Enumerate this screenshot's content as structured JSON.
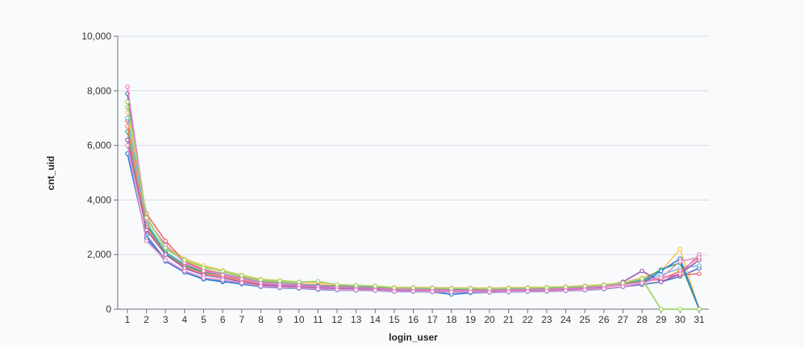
{
  "chart_data": {
    "type": "line",
    "title": "",
    "xlabel": "login_user",
    "ylabel": "cnt_uid",
    "x": [
      "1",
      "2",
      "3",
      "4",
      "5",
      "6",
      "7",
      "8",
      "9",
      "10",
      "11",
      "12",
      "13",
      "14",
      "15",
      "16",
      "17",
      "18",
      "19",
      "20",
      "21",
      "22",
      "23",
      "24",
      "25",
      "26",
      "27",
      "28",
      "29",
      "30",
      "31"
    ],
    "yTicks": [
      "0",
      "2,000",
      "4,000",
      "6,000",
      "8,000",
      "10,000"
    ],
    "ylim": [
      0,
      10000
    ],
    "grid": true,
    "legend_placement": "top (clipped)",
    "series": [
      {
        "color": "#5470c6",
        "values": [
          7900,
          2700,
          1800,
          1350,
          1100,
          1000,
          950,
          850,
          800,
          780,
          720,
          700,
          700,
          690,
          650,
          650,
          640,
          620,
          620,
          620,
          640,
          650,
          660,
          680,
          700,
          740,
          820,
          900,
          1000,
          1200,
          1500
        ]
      },
      {
        "color": "#91cc75",
        "values": [
          7400,
          3400,
          2200,
          1800,
          1550,
          1380,
          1200,
          1050,
          1000,
          980,
          1000,
          880,
          850,
          820,
          760,
          760,
          750,
          740,
          750,
          740,
          760,
          760,
          780,
          800,
          820,
          860,
          950,
          1100,
          0,
          0,
          0
        ]
      },
      {
        "color": "#fac858",
        "values": [
          7200,
          3300,
          2300,
          1850,
          1600,
          1420,
          1250,
          1100,
          1050,
          1000,
          950,
          900,
          880,
          850,
          800,
          800,
          790,
          780,
          780,
          770,
          790,
          800,
          810,
          830,
          860,
          900,
          980,
          1150,
          1400,
          2200,
          0
        ]
      },
      {
        "color": "#ee6666",
        "values": [
          6900,
          3500,
          2500,
          1750,
          1450,
          1300,
          1150,
          1000,
          950,
          920,
          880,
          850,
          840,
          820,
          780,
          780,
          770,
          760,
          760,
          750,
          770,
          780,
          790,
          810,
          840,
          880,
          960,
          1050,
          1150,
          1250,
          1300
        ]
      },
      {
        "color": "#73c0de",
        "values": [
          7000,
          3200,
          2100,
          1650,
          1400,
          1280,
          1120,
          980,
          930,
          900,
          860,
          830,
          820,
          800,
          760,
          760,
          750,
          740,
          740,
          730,
          750,
          760,
          770,
          790,
          820,
          860,
          940,
          1080,
          1250,
          1500,
          1600
        ]
      },
      {
        "color": "#3ba272",
        "values": [
          6500,
          3100,
          2050,
          1600,
          1350,
          1250,
          1080,
          950,
          900,
          880,
          840,
          810,
          800,
          790,
          740,
          740,
          730,
          720,
          720,
          710,
          730,
          740,
          750,
          770,
          800,
          840,
          920,
          1050,
          1450,
          1700,
          0
        ]
      },
      {
        "color": "#fc8452",
        "values": [
          6700,
          3000,
          2000,
          1550,
          1300,
          1200,
          1050,
          920,
          880,
          860,
          820,
          790,
          780,
          770,
          720,
          720,
          710,
          700,
          700,
          690,
          710,
          720,
          730,
          750,
          780,
          820,
          900,
          1000,
          1100,
          1400,
          1900
        ]
      },
      {
        "color": "#9a60b4",
        "values": [
          6200,
          2900,
          2000,
          1500,
          1250,
          1150,
          1000,
          880,
          850,
          820,
          780,
          760,
          750,
          740,
          700,
          700,
          690,
          680,
          680,
          670,
          690,
          700,
          710,
          730,
          760,
          800,
          1000,
          1400,
          1000,
          1300,
          1800
        ]
      },
      {
        "color": "#ea7ccc",
        "values": [
          8150,
          3300,
          2350,
          1700,
          1400,
          1250,
          1100,
          950,
          900,
          870,
          820,
          790,
          780,
          770,
          720,
          720,
          710,
          700,
          700,
          690,
          710,
          720,
          730,
          750,
          780,
          820,
          900,
          1000,
          1150,
          1300,
          2000
        ]
      },
      {
        "color": "#2f7fd8",
        "values": [
          5700,
          2600,
          1750,
          1350,
          1100,
          1020,
          920,
          820,
          780,
          760,
          720,
          700,
          690,
          680,
          640,
          640,
          630,
          540,
          600,
          610,
          630,
          640,
          650,
          670,
          700,
          740,
          820,
          950,
          1400,
          1850,
          0
        ]
      },
      {
        "color": "#a5d66f",
        "values": [
          7600,
          3350,
          2250,
          1800,
          1520,
          1400,
          1230,
          1080,
          1040,
          1000,
          1020,
          900,
          870,
          840,
          780,
          780,
          770,
          760,
          760,
          750,
          770,
          780,
          790,
          810,
          840,
          880,
          960,
          1120,
          0,
          0,
          0
        ]
      },
      {
        "color": "#e491c8",
        "values": [
          6000,
          2500,
          1800,
          1400,
          1150,
          1080,
          960,
          840,
          800,
          780,
          740,
          710,
          700,
          690,
          650,
          650,
          640,
          630,
          630,
          620,
          640,
          650,
          660,
          680,
          710,
          750,
          830,
          950,
          1150,
          1750,
          1900
        ]
      }
    ]
  }
}
